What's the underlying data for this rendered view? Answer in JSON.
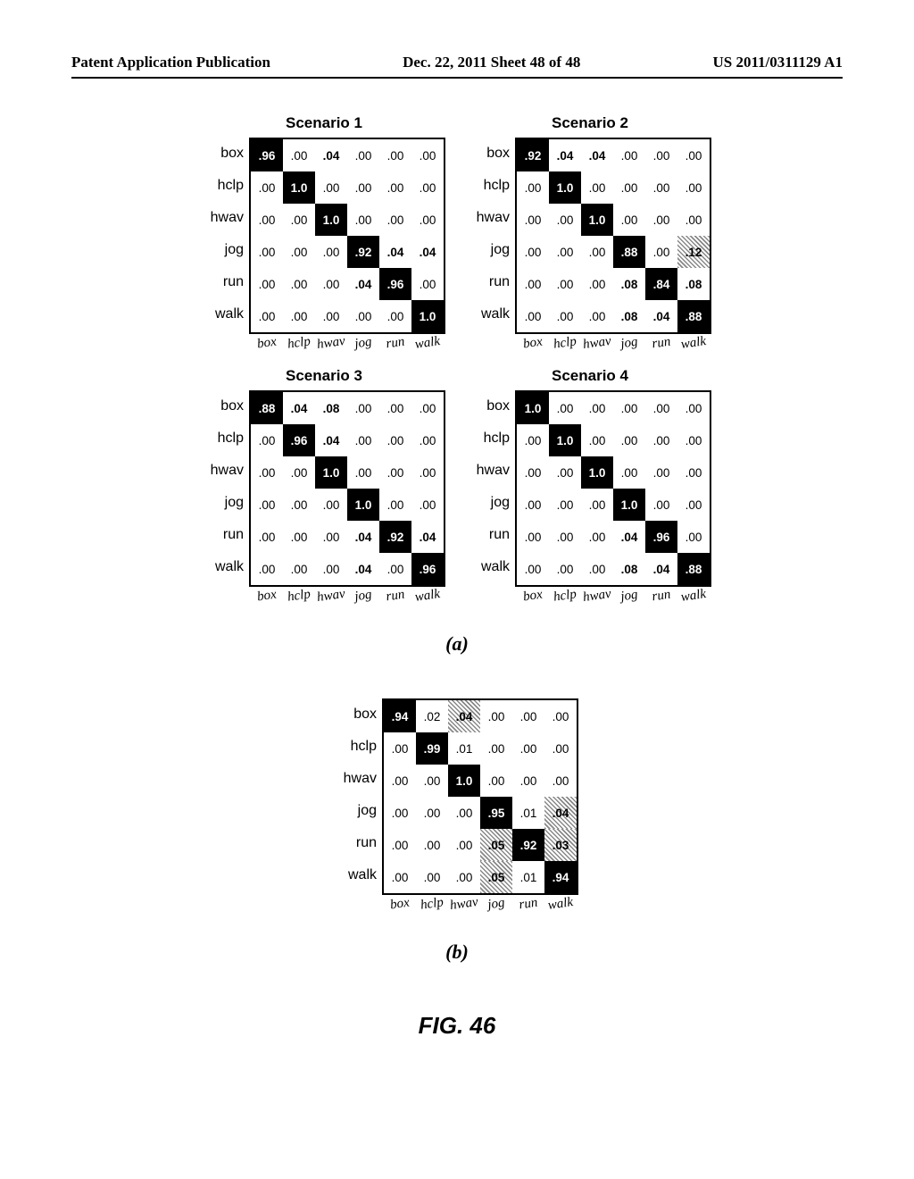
{
  "header": {
    "left": "Patent Application Publication",
    "middle": "Dec. 22, 2011  Sheet 48 of 48",
    "right": "US 2011/0311129 A1"
  },
  "row_labels": [
    "box",
    "hclp",
    "hwav",
    "jog",
    "run",
    "walk"
  ],
  "col_labels": [
    "box",
    "hclp",
    "hwav",
    "jog",
    "run",
    "walk"
  ],
  "matrices": [
    {
      "title": "Scenario 1",
      "rows": [
        [
          {
            "v": ".96",
            "d": 1
          },
          {
            "v": ".00"
          },
          {
            "v": ".04",
            "b": 1
          },
          {
            "v": ".00"
          },
          {
            "v": ".00"
          },
          {
            "v": ".00"
          }
        ],
        [
          {
            "v": ".00"
          },
          {
            "v": "1.0",
            "d": 1
          },
          {
            "v": ".00"
          },
          {
            "v": ".00"
          },
          {
            "v": ".00"
          },
          {
            "v": ".00"
          }
        ],
        [
          {
            "v": ".00"
          },
          {
            "v": ".00"
          },
          {
            "v": "1.0",
            "d": 1
          },
          {
            "v": ".00"
          },
          {
            "v": ".00"
          },
          {
            "v": ".00"
          }
        ],
        [
          {
            "v": ".00"
          },
          {
            "v": ".00"
          },
          {
            "v": ".00"
          },
          {
            "v": ".92",
            "d": 1
          },
          {
            "v": ".04",
            "b": 1
          },
          {
            "v": ".04",
            "b": 1
          }
        ],
        [
          {
            "v": ".00"
          },
          {
            "v": ".00"
          },
          {
            "v": ".00"
          },
          {
            "v": ".04",
            "b": 1
          },
          {
            "v": ".96",
            "d": 1
          },
          {
            "v": ".00"
          }
        ],
        [
          {
            "v": ".00"
          },
          {
            "v": ".00"
          },
          {
            "v": ".00"
          },
          {
            "v": ".00"
          },
          {
            "v": ".00"
          },
          {
            "v": "1.0",
            "d": 1
          }
        ]
      ]
    },
    {
      "title": "Scenario 2",
      "rows": [
        [
          {
            "v": ".92",
            "d": 1
          },
          {
            "v": ".04",
            "b": 1
          },
          {
            "v": ".04",
            "b": 1
          },
          {
            "v": ".00"
          },
          {
            "v": ".00"
          },
          {
            "v": ".00"
          }
        ],
        [
          {
            "v": ".00"
          },
          {
            "v": "1.0",
            "d": 1
          },
          {
            "v": ".00"
          },
          {
            "v": ".00"
          },
          {
            "v": ".00"
          },
          {
            "v": ".00"
          }
        ],
        [
          {
            "v": ".00"
          },
          {
            "v": ".00"
          },
          {
            "v": "1.0",
            "d": 1
          },
          {
            "v": ".00"
          },
          {
            "v": ".00"
          },
          {
            "v": ".00"
          }
        ],
        [
          {
            "v": ".00"
          },
          {
            "v": ".00"
          },
          {
            "v": ".00"
          },
          {
            "v": ".88",
            "d": 1
          },
          {
            "v": ".00"
          },
          {
            "v": ".12",
            "h": 1
          }
        ],
        [
          {
            "v": ".00"
          },
          {
            "v": ".00"
          },
          {
            "v": ".00"
          },
          {
            "v": ".08",
            "b": 1
          },
          {
            "v": ".84",
            "d": 1
          },
          {
            "v": ".08",
            "b": 1
          }
        ],
        [
          {
            "v": ".00"
          },
          {
            "v": ".00"
          },
          {
            "v": ".00"
          },
          {
            "v": ".08",
            "b": 1
          },
          {
            "v": ".04",
            "b": 1
          },
          {
            "v": ".88",
            "d": 1
          }
        ]
      ]
    },
    {
      "title": "Scenario 3",
      "rows": [
        [
          {
            "v": ".88",
            "d": 1
          },
          {
            "v": ".04",
            "b": 1
          },
          {
            "v": ".08",
            "b": 1
          },
          {
            "v": ".00"
          },
          {
            "v": ".00"
          },
          {
            "v": ".00"
          }
        ],
        [
          {
            "v": ".00"
          },
          {
            "v": ".96",
            "d": 1
          },
          {
            "v": ".04",
            "b": 1
          },
          {
            "v": ".00"
          },
          {
            "v": ".00"
          },
          {
            "v": ".00"
          }
        ],
        [
          {
            "v": ".00"
          },
          {
            "v": ".00"
          },
          {
            "v": "1.0",
            "d": 1
          },
          {
            "v": ".00"
          },
          {
            "v": ".00"
          },
          {
            "v": ".00"
          }
        ],
        [
          {
            "v": ".00"
          },
          {
            "v": ".00"
          },
          {
            "v": ".00"
          },
          {
            "v": "1.0",
            "d": 1
          },
          {
            "v": ".00"
          },
          {
            "v": ".00"
          }
        ],
        [
          {
            "v": ".00"
          },
          {
            "v": ".00"
          },
          {
            "v": ".00"
          },
          {
            "v": ".04",
            "b": 1
          },
          {
            "v": ".92",
            "d": 1
          },
          {
            "v": ".04",
            "b": 1
          }
        ],
        [
          {
            "v": ".00"
          },
          {
            "v": ".00"
          },
          {
            "v": ".00"
          },
          {
            "v": ".04",
            "b": 1
          },
          {
            "v": ".00"
          },
          {
            "v": ".96",
            "d": 1
          }
        ]
      ]
    },
    {
      "title": "Scenario 4",
      "rows": [
        [
          {
            "v": "1.0",
            "d": 1
          },
          {
            "v": ".00"
          },
          {
            "v": ".00"
          },
          {
            "v": ".00"
          },
          {
            "v": ".00"
          },
          {
            "v": ".00"
          }
        ],
        [
          {
            "v": ".00"
          },
          {
            "v": "1.0",
            "d": 1
          },
          {
            "v": ".00"
          },
          {
            "v": ".00"
          },
          {
            "v": ".00"
          },
          {
            "v": ".00"
          }
        ],
        [
          {
            "v": ".00"
          },
          {
            "v": ".00"
          },
          {
            "v": "1.0",
            "d": 1
          },
          {
            "v": ".00"
          },
          {
            "v": ".00"
          },
          {
            "v": ".00"
          }
        ],
        [
          {
            "v": ".00"
          },
          {
            "v": ".00"
          },
          {
            "v": ".00"
          },
          {
            "v": "1.0",
            "d": 1
          },
          {
            "v": ".00"
          },
          {
            "v": ".00"
          }
        ],
        [
          {
            "v": ".00"
          },
          {
            "v": ".00"
          },
          {
            "v": ".00"
          },
          {
            "v": ".04",
            "b": 1
          },
          {
            "v": ".96",
            "d": 1
          },
          {
            "v": ".00"
          }
        ],
        [
          {
            "v": ".00"
          },
          {
            "v": ".00"
          },
          {
            "v": ".00"
          },
          {
            "v": ".08",
            "b": 1
          },
          {
            "v": ".04",
            "b": 1
          },
          {
            "v": ".88",
            "d": 1
          }
        ]
      ]
    }
  ],
  "sub_a": "(a)",
  "matrix_b": {
    "rows": [
      [
        {
          "v": ".94",
          "d": 1
        },
        {
          "v": ".02"
        },
        {
          "v": ".04",
          "h": 1
        },
        {
          "v": ".00"
        },
        {
          "v": ".00"
        },
        {
          "v": ".00"
        }
      ],
      [
        {
          "v": ".00"
        },
        {
          "v": ".99",
          "d": 1
        },
        {
          "v": ".01"
        },
        {
          "v": ".00"
        },
        {
          "v": ".00"
        },
        {
          "v": ".00"
        }
      ],
      [
        {
          "v": ".00"
        },
        {
          "v": ".00"
        },
        {
          "v": "1.0",
          "d": 1
        },
        {
          "v": ".00"
        },
        {
          "v": ".00"
        },
        {
          "v": ".00"
        }
      ],
      [
        {
          "v": ".00"
        },
        {
          "v": ".00"
        },
        {
          "v": ".00"
        },
        {
          "v": ".95",
          "d": 1
        },
        {
          "v": ".01"
        },
        {
          "v": ".04",
          "h": 1
        }
      ],
      [
        {
          "v": ".00"
        },
        {
          "v": ".00"
        },
        {
          "v": ".00"
        },
        {
          "v": ".05",
          "h": 1
        },
        {
          "v": ".92",
          "d": 1
        },
        {
          "v": ".03",
          "h": 1
        }
      ],
      [
        {
          "v": ".00"
        },
        {
          "v": ".00"
        },
        {
          "v": ".00"
        },
        {
          "v": ".05",
          "h": 1
        },
        {
          "v": ".01"
        },
        {
          "v": ".94",
          "d": 1
        }
      ]
    ]
  },
  "sub_b": "(b)",
  "figure_label": "FIG. 46"
}
